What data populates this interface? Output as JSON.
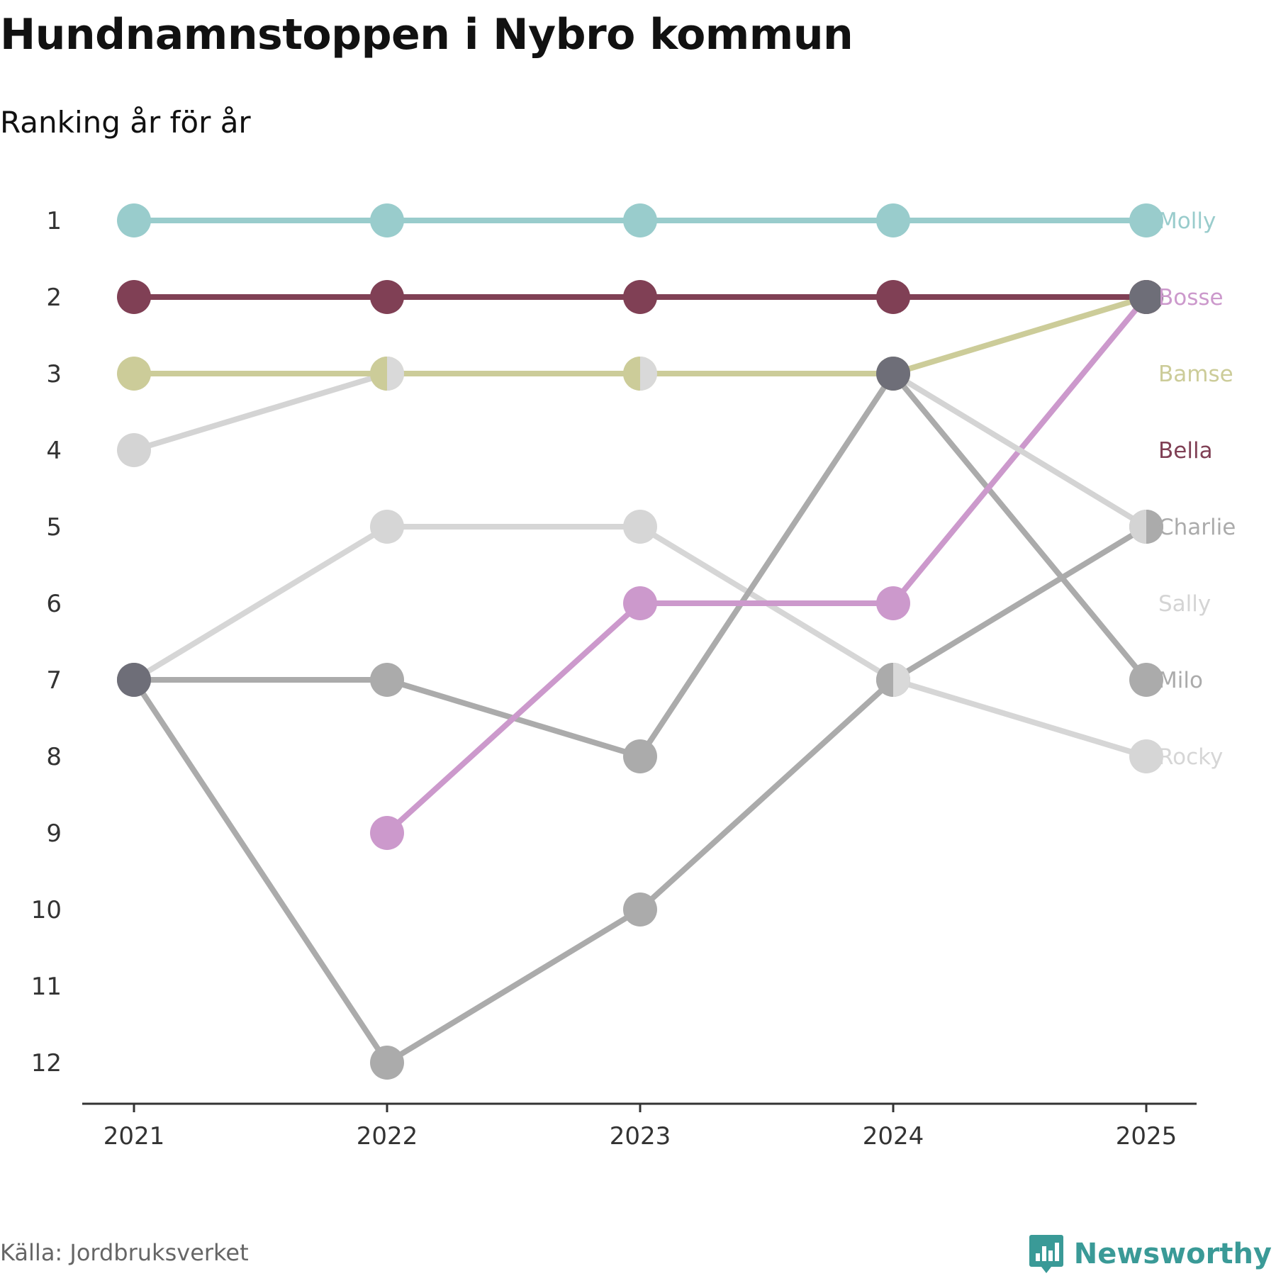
{
  "chart_data": {
    "type": "line",
    "title": "Hundnamnstoppen i Nybro kommun",
    "subtitle": "Ranking år för år",
    "xlabel": "",
    "ylabel": "",
    "x": [
      "2021",
      "2022",
      "2023",
      "2024",
      "2025"
    ],
    "y_ticks": [
      "1",
      "2",
      "3",
      "4",
      "5",
      "6",
      "7",
      "8",
      "9",
      "10",
      "11",
      "12"
    ],
    "ylim": [
      1,
      12
    ],
    "y_inverted": true,
    "series": [
      {
        "name": "Sally",
        "color": "#d4d4d4",
        "values": [
          4,
          3,
          null,
          null,
          null
        ]
      },
      {
        "name": "Rocky",
        "color": "#d6d6d6",
        "values": [
          7,
          5,
          5,
          7,
          8
        ]
      },
      {
        "name": "Charlie",
        "color": "#ababab",
        "values": [
          7,
          12,
          10,
          7,
          5
        ]
      },
      {
        "name": "Milo",
        "color": "#ababab",
        "values": [
          7,
          7,
          8,
          3,
          7
        ]
      },
      {
        "name": "Bosse",
        "color": "#cc99cc",
        "values": [
          null,
          9,
          6,
          6,
          2
        ]
      },
      {
        "name": "Bamse",
        "color": "#cccc99",
        "values": [
          3,
          3,
          3,
          3,
          2
        ]
      },
      {
        "name": "Bella",
        "color": "#804055",
        "values": [
          2,
          2,
          2,
          2,
          2
        ]
      },
      {
        "name": "Molly",
        "color": "#99cccc",
        "values": [
          1,
          1,
          1,
          1,
          1
        ]
      }
    ],
    "extra_line": {
      "name": "",
      "color": "#d4d4d4",
      "values": [
        null,
        null,
        null,
        3,
        5
      ]
    },
    "dark_point_color": "#6e6e78",
    "dark_points": [
      {
        "x": "2021",
        "y": 7
      },
      {
        "x": "2024",
        "y": 3
      },
      {
        "x": "2025",
        "y": 2
      }
    ],
    "half_points": [
      {
        "x": "2022",
        "y": 3,
        "left": "#cccc99",
        "right": "#d9d9d9"
      },
      {
        "x": "2023",
        "y": 3,
        "left": "#cccc99",
        "right": "#d9d9d9"
      },
      {
        "x": "2024",
        "y": 7,
        "left": "#ababab",
        "right": "#d9d9d9"
      },
      {
        "x": "2025",
        "y": 5,
        "left": "#d4d4d4",
        "right": "#ababab"
      }
    ],
    "end_labels": [
      {
        "text": "Molly",
        "rank": 1,
        "color": "#99cccc"
      },
      {
        "text": "Bosse",
        "rank": 2,
        "color": "#cc99cc"
      },
      {
        "text": "Bamse",
        "rank": 3,
        "color": "#cccc99"
      },
      {
        "text": "Bella",
        "rank": 4,
        "color": "#804055"
      },
      {
        "text": "Charlie",
        "rank": 5,
        "color": "#ababab"
      },
      {
        "text": "Sally",
        "rank": 6,
        "color": "#d4d4d4"
      },
      {
        "text": "Milo",
        "rank": 7,
        "color": "#ababab"
      },
      {
        "text": "Rocky",
        "rank": 8,
        "color": "#d6d6d6"
      }
    ],
    "grid": false,
    "legend": "end-labels-right"
  },
  "source": "Källa: Jordbruksverket",
  "brand": {
    "name": "Newsworthy",
    "color": "#3a9a97",
    "icon": "newsworthy-logo-icon"
  }
}
